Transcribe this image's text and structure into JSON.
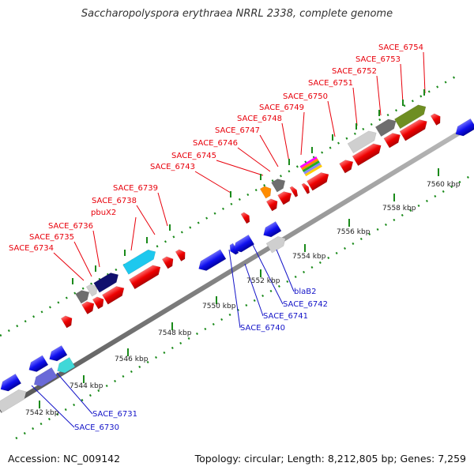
{
  "title": "Saccharopolyspora erythraea NRRL 2338, complete genome",
  "footer": {
    "accession": "Accession: NC_009142",
    "summary": "Topology: circular; Length: 8,212,805 bp; Genes: 7,259"
  },
  "colors": {
    "forward_label": "#e8000b",
    "reverse_label": "#1414c8",
    "tick": "#1a8a1a",
    "backbone": "#777777"
  },
  "kbp_ticks": [
    {
      "label": "7542 kbp"
    },
    {
      "label": "7544 kbp"
    },
    {
      "label": "7546 kbp"
    },
    {
      "label": "7548 kbp"
    },
    {
      "label": "7550 kbp"
    },
    {
      "label": "7552 kbp"
    },
    {
      "label": "7554 kbp"
    },
    {
      "label": "7556 kbp"
    },
    {
      "label": "7558 kbp"
    },
    {
      "label": "7560 kbp"
    }
  ],
  "forward_labels": [
    {
      "text": "SACE_6734"
    },
    {
      "text": "SACE_6735"
    },
    {
      "text": "SACE_6736"
    },
    {
      "text": "pbuX2"
    },
    {
      "text": "SACE_6738"
    },
    {
      "text": "SACE_6739"
    },
    {
      "text": "SACE_6743"
    },
    {
      "text": "SACE_6745"
    },
    {
      "text": "SACE_6746"
    },
    {
      "text": "SACE_6747"
    },
    {
      "text": "SACE_6748"
    },
    {
      "text": "SACE_6749"
    },
    {
      "text": "SACE_6750"
    },
    {
      "text": "SACE_6751"
    },
    {
      "text": "SACE_6752"
    },
    {
      "text": "SACE_6753"
    },
    {
      "text": "SACE_6754"
    }
  ],
  "reverse_labels": [
    {
      "text": "SACE_6730"
    },
    {
      "text": "SACE_6731"
    },
    {
      "text": "SACE_6740"
    },
    {
      "text": "SACE_6741"
    },
    {
      "text": "SACE_6742"
    },
    {
      "text": "blaB2"
    }
  ]
}
